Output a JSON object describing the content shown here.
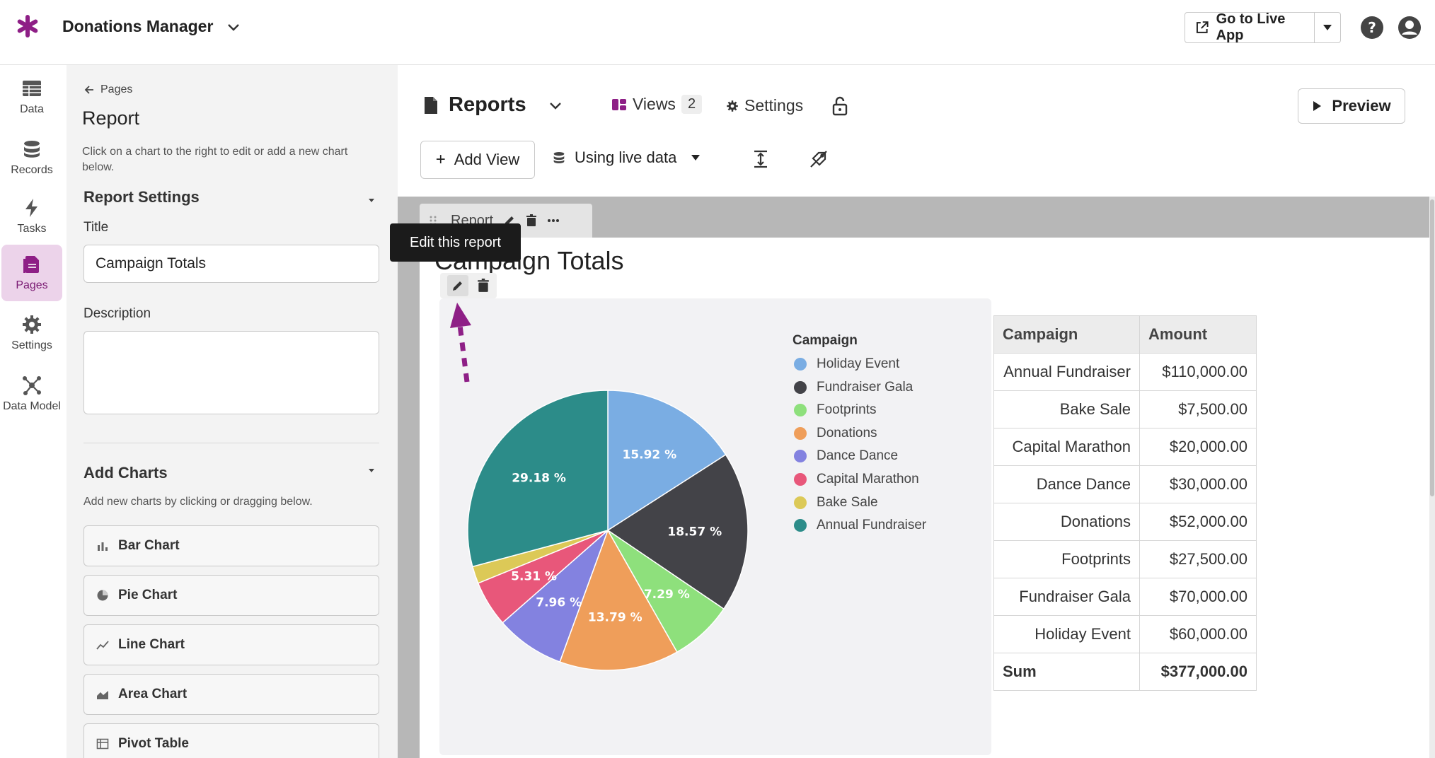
{
  "app": {
    "title": "Donations Manager",
    "accent_color": "#8e1f86",
    "go_live_label": "Go to Live App"
  },
  "rail": {
    "items": [
      {
        "label": "Data",
        "icon": "table-icon"
      },
      {
        "label": "Records",
        "icon": "database-icon"
      },
      {
        "label": "Tasks",
        "icon": "lightning-icon"
      },
      {
        "label": "Pages",
        "icon": "pages-icon",
        "active": true
      },
      {
        "label": "Settings",
        "icon": "gear-icon"
      },
      {
        "label": "Data Model",
        "icon": "data-model-icon"
      }
    ]
  },
  "panel": {
    "back_label": "Pages",
    "title": "Report",
    "description": "Click on a chart to the right to edit or add a new chart below.",
    "report_settings_heading": "Report Settings",
    "title_label": "Title",
    "title_value": "Campaign Totals",
    "description_label": "Description",
    "description_value": "",
    "add_charts_heading": "Add Charts",
    "add_charts_desc": "Add new charts by clicking or dragging below.",
    "chart_types": [
      {
        "label": "Bar Chart",
        "icon": "bar-chart-icon"
      },
      {
        "label": "Pie Chart",
        "icon": "pie-chart-icon"
      },
      {
        "label": "Line Chart",
        "icon": "line-chart-icon"
      },
      {
        "label": "Area Chart",
        "icon": "area-chart-icon"
      },
      {
        "label": "Pivot Table",
        "icon": "pivot-table-icon"
      }
    ]
  },
  "main": {
    "page_title": "Reports",
    "views_label": "Views",
    "views_count": "2",
    "settings_label": "Settings",
    "preview_label": "Preview",
    "add_view_label": "Add View",
    "live_data_label": "Using live data",
    "view_tab_label": "Report",
    "report_title": "Campaign Totals",
    "tooltip": "Edit this report"
  },
  "chart_data": {
    "type": "pie",
    "legend_title": "Campaign",
    "legend_position": "right",
    "slices": [
      {
        "label": "Holiday Event",
        "value": 15.92,
        "display": "15.92 %",
        "color": "#7aade3"
      },
      {
        "label": "Fundraiser Gala",
        "value": 18.57,
        "display": "18.57 %",
        "color": "#434348"
      },
      {
        "label": "Footprints",
        "value": 7.29,
        "display": "7.29 %",
        "color": "#8ee07c"
      },
      {
        "label": "Donations",
        "value": 13.79,
        "display": "13.79 %",
        "color": "#ef9e5a"
      },
      {
        "label": "Dance Dance",
        "value": 7.96,
        "display": "7.96 %",
        "color": "#8382e0"
      },
      {
        "label": "Capital Marathon",
        "value": 5.31,
        "display": "5.31 %",
        "color": "#e8577a"
      },
      {
        "label": "Bake Sale",
        "value": 1.99,
        "display": "",
        "color": "#dcc957"
      },
      {
        "label": "Annual Fundraiser",
        "value": 29.18,
        "display": "29.18 %",
        "color": "#2c8c89"
      }
    ]
  },
  "table": {
    "headers": [
      "Campaign",
      "Amount"
    ],
    "rows": [
      [
        "Annual Fundraiser",
        "$110,000.00"
      ],
      [
        "Bake Sale",
        "$7,500.00"
      ],
      [
        "Capital Marathon",
        "$20,000.00"
      ],
      [
        "Dance Dance",
        "$30,000.00"
      ],
      [
        "Donations",
        "$52,000.00"
      ],
      [
        "Footprints",
        "$27,500.00"
      ],
      [
        "Fundraiser Gala",
        "$70,000.00"
      ],
      [
        "Holiday Event",
        "$60,000.00"
      ]
    ],
    "sum_label": "Sum",
    "sum_value": "$377,000.00"
  }
}
